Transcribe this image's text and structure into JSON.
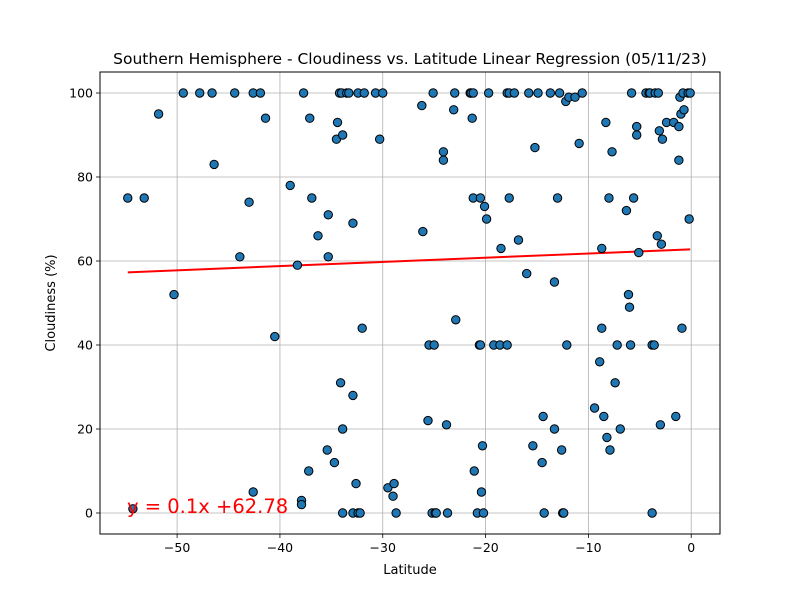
{
  "chart_data": {
    "type": "scatter",
    "title": "Southern Hemisphere - Cloudiness vs. Latitude Linear Regression (05/11/23)",
    "xlabel": "Latitude",
    "ylabel": "Cloudiness (%)",
    "xlim": [
      -57.5,
      2.8
    ],
    "ylim": [
      -5,
      105
    ],
    "xticks": [
      -50,
      -40,
      -30,
      -20,
      -10,
      0
    ],
    "yticks": [
      0,
      20,
      40,
      60,
      80,
      100
    ],
    "grid": true,
    "point_color": "#1f77b4",
    "line_color": "#ff0000",
    "equation": "y = 0.1x +62.78",
    "regression": {
      "slope": 0.1,
      "intercept": 62.78,
      "x_range": [
        -54.8,
        -0.1
      ]
    },
    "points": [
      [
        -54.8,
        75
      ],
      [
        -54.3,
        1
      ],
      [
        -53.2,
        75
      ],
      [
        -51.8,
        95
      ],
      [
        -50.3,
        52
      ],
      [
        -49.4,
        100
      ],
      [
        -47.8,
        100
      ],
      [
        -46.6,
        100
      ],
      [
        -46.4,
        83
      ],
      [
        -44.4,
        100
      ],
      [
        -43.9,
        61
      ],
      [
        -43.0,
        74
      ],
      [
        -42.6,
        5
      ],
      [
        -42.6,
        100
      ],
      [
        -41.9,
        100
      ],
      [
        -41.4,
        94
      ],
      [
        -40.5,
        42
      ],
      [
        -39.0,
        78
      ],
      [
        -38.3,
        59
      ],
      [
        -37.9,
        3
      ],
      [
        -37.9,
        2
      ],
      [
        -37.7,
        100
      ],
      [
        -37.2,
        10
      ],
      [
        -37.1,
        94
      ],
      [
        -36.9,
        75
      ],
      [
        -36.3,
        66
      ],
      [
        -35.4,
        15
      ],
      [
        -35.3,
        61
      ],
      [
        -35.3,
        71
      ],
      [
        -34.7,
        12
      ],
      [
        -34.5,
        89
      ],
      [
        -34.4,
        93
      ],
      [
        -34.2,
        100
      ],
      [
        -34.1,
        31
      ],
      [
        -34.0,
        100
      ],
      [
        -33.9,
        90
      ],
      [
        -33.9,
        20
      ],
      [
        -33.9,
        0
      ],
      [
        -33.5,
        100
      ],
      [
        -33.3,
        100
      ],
      [
        -32.9,
        69
      ],
      [
        -32.9,
        0
      ],
      [
        -32.9,
        28
      ],
      [
        -32.6,
        7
      ],
      [
        -32.4,
        100
      ],
      [
        -32.4,
        0
      ],
      [
        -32.2,
        0
      ],
      [
        -32.0,
        44
      ],
      [
        -31.8,
        100
      ],
      [
        -30.7,
        100
      ],
      [
        -30.3,
        89
      ],
      [
        -30.0,
        100
      ],
      [
        -29.5,
        6
      ],
      [
        -29.0,
        4
      ],
      [
        -28.9,
        7
      ],
      [
        -28.7,
        0
      ],
      [
        -26.2,
        97
      ],
      [
        -26.1,
        67
      ],
      [
        -25.6,
        22
      ],
      [
        -25.5,
        40
      ],
      [
        -25.2,
        0
      ],
      [
        -25.1,
        100
      ],
      [
        -25.0,
        40
      ],
      [
        -24.9,
        0
      ],
      [
        -24.8,
        0
      ],
      [
        -24.1,
        84
      ],
      [
        -24.1,
        86
      ],
      [
        -23.8,
        21
      ],
      [
        -23.7,
        0
      ],
      [
        -23.1,
        96
      ],
      [
        -23.0,
        100
      ],
      [
        -22.9,
        46
      ],
      [
        -21.5,
        100
      ],
      [
        -21.4,
        100
      ],
      [
        -21.3,
        94
      ],
      [
        -21.2,
        75
      ],
      [
        -21.2,
        100
      ],
      [
        -21.1,
        10
      ],
      [
        -20.8,
        0
      ],
      [
        -20.6,
        40
      ],
      [
        -20.5,
        40
      ],
      [
        -20.5,
        75
      ],
      [
        -20.4,
        5
      ],
      [
        -20.3,
        16
      ],
      [
        -20.2,
        0
      ],
      [
        -20.1,
        73
      ],
      [
        -19.9,
        70
      ],
      [
        -19.7,
        100
      ],
      [
        -19.2,
        40
      ],
      [
        -18.6,
        40
      ],
      [
        -18.5,
        63
      ],
      [
        -17.9,
        100
      ],
      [
        -17.9,
        40
      ],
      [
        -17.7,
        100
      ],
      [
        -17.7,
        75
      ],
      [
        -17.2,
        100
      ],
      [
        -16.8,
        65
      ],
      [
        -16.0,
        57
      ],
      [
        -15.8,
        100
      ],
      [
        -15.4,
        16
      ],
      [
        -15.2,
        87
      ],
      [
        -14.9,
        100
      ],
      [
        -14.5,
        12
      ],
      [
        -14.4,
        23
      ],
      [
        -14.3,
        0
      ],
      [
        -13.7,
        100
      ],
      [
        -13.3,
        55
      ],
      [
        -13.3,
        20
      ],
      [
        -13.0,
        75
      ],
      [
        -12.8,
        100
      ],
      [
        -12.6,
        15
      ],
      [
        -12.5,
        0
      ],
      [
        -12.4,
        0
      ],
      [
        -12.2,
        98
      ],
      [
        -12.1,
        40
      ],
      [
        -11.9,
        99
      ],
      [
        -11.3,
        99
      ],
      [
        -10.9,
        88
      ],
      [
        -10.6,
        100
      ],
      [
        -9.4,
        25
      ],
      [
        -8.9,
        36
      ],
      [
        -8.7,
        63
      ],
      [
        -8.7,
        44
      ],
      [
        -8.5,
        23
      ],
      [
        -8.3,
        93
      ],
      [
        -8.2,
        18
      ],
      [
        -8.0,
        75
      ],
      [
        -7.9,
        15
      ],
      [
        -7.7,
        86
      ],
      [
        -7.4,
        31
      ],
      [
        -7.2,
        40
      ],
      [
        -6.9,
        20
      ],
      [
        -6.3,
        72
      ],
      [
        -6.1,
        52
      ],
      [
        -6.0,
        49
      ],
      [
        -5.9,
        40
      ],
      [
        -5.8,
        100
      ],
      [
        -5.6,
        75
      ],
      [
        -5.3,
        90
      ],
      [
        -5.3,
        92
      ],
      [
        -5.1,
        62
      ],
      [
        -4.4,
        100
      ],
      [
        -4.1,
        100
      ],
      [
        -4.0,
        100
      ],
      [
        -3.8,
        40
      ],
      [
        -3.8,
        0
      ],
      [
        -3.6,
        40
      ],
      [
        -3.5,
        100
      ],
      [
        -3.3,
        66
      ],
      [
        -3.2,
        100
      ],
      [
        -3.1,
        91
      ],
      [
        -3.0,
        21
      ],
      [
        -2.9,
        64
      ],
      [
        -2.8,
        89
      ],
      [
        -2.4,
        93
      ],
      [
        -1.7,
        93
      ],
      [
        -1.5,
        23
      ],
      [
        -1.2,
        92
      ],
      [
        -1.2,
        84
      ],
      [
        -1.1,
        99
      ],
      [
        -1.0,
        95
      ],
      [
        -0.9,
        44
      ],
      [
        -0.8,
        100
      ],
      [
        -0.7,
        96
      ],
      [
        -0.3,
        100
      ],
      [
        -0.2,
        70
      ],
      [
        -0.1,
        100
      ]
    ]
  }
}
